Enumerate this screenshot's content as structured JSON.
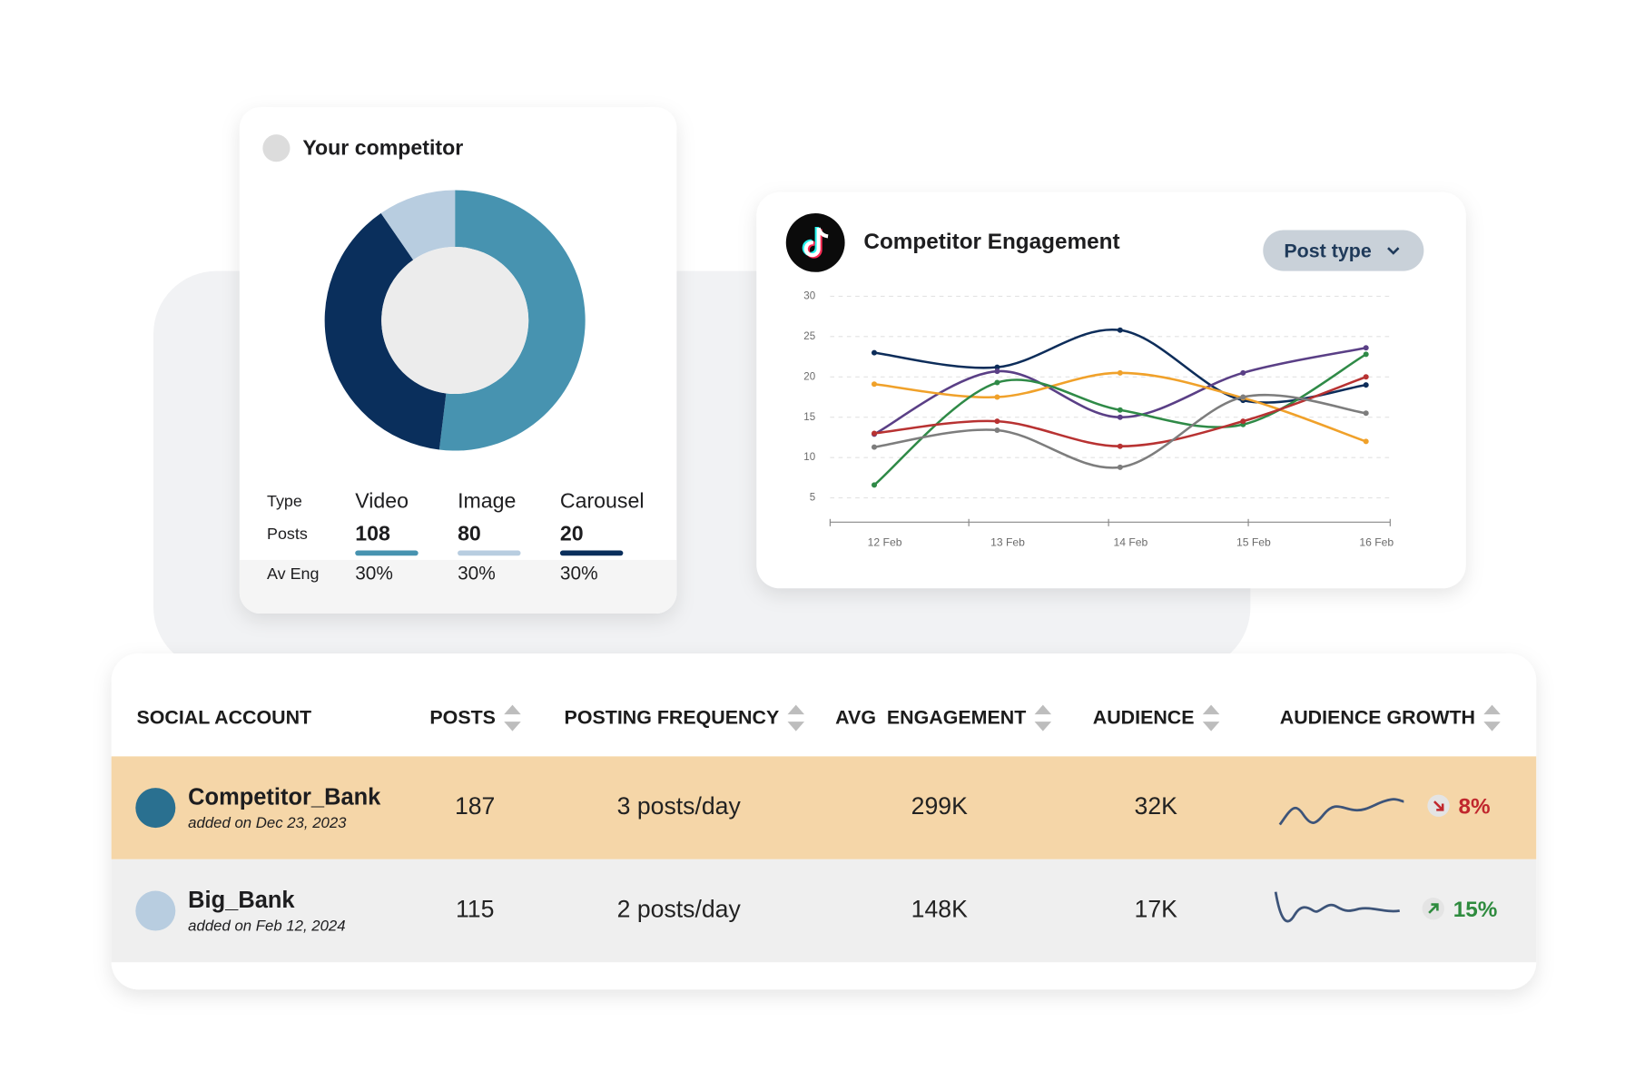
{
  "competitor_card": {
    "title": "Your competitor",
    "chart": {
      "type": "pie",
      "donut": true,
      "categories": [
        "Video",
        "Image",
        "Carousel"
      ],
      "values": [
        108,
        80,
        20
      ],
      "colors": [
        "#4793b0",
        "#0a2f5c",
        "#b8cde0"
      ]
    },
    "row_labels": [
      "Type",
      "Posts",
      "Av Eng"
    ],
    "bar_colors": [
      "#4793b0",
      "#b8cde0",
      "#0a2f5c"
    ],
    "av_eng": [
      "30%",
      "30%",
      "30%"
    ]
  },
  "engagement_card": {
    "title": "Competitor Engagement",
    "button": "Post type",
    "chart": {
      "type": "line",
      "categories": [
        "12 Feb",
        "13 Feb",
        "14 Feb",
        "15 Feb",
        "16 Feb"
      ],
      "series": [
        {
          "color": "#0d2d5a",
          "values": [
            23,
            21.2,
            25.8,
            17.1,
            19
          ]
        },
        {
          "color": "#5a3f86",
          "values": [
            12.9,
            20.7,
            15,
            20.5,
            23.6
          ]
        },
        {
          "color": "#f0a12a",
          "values": [
            19.1,
            17.5,
            20.5,
            17.4,
            12
          ]
        },
        {
          "color": "#2f8a47",
          "values": [
            6.6,
            19.3,
            15.9,
            14.1,
            22.8
          ]
        },
        {
          "color": "#b83232",
          "values": [
            13,
            14.5,
            11.4,
            14.5,
            20
          ]
        },
        {
          "color": "#7d7d7d",
          "values": [
            11.3,
            13.4,
            8.8,
            17.5,
            15.5
          ]
        }
      ],
      "ylim": [
        2,
        30
      ],
      "yticks": [
        5,
        10,
        15,
        20,
        25,
        30
      ],
      "grid": true
    }
  },
  "table": {
    "headers": [
      "SOCIAL ACCOUNT",
      "POSTS",
      "POSTING FREQUENCY",
      "AVG  ENGAGEMENT",
      "AUDIENCE",
      "AUDIENCE GROWTH"
    ],
    "rows": [
      {
        "account": "Competitor_Bank",
        "added": "added on Dec 23, 2023",
        "posts": 187,
        "frequency": "3 posts/day",
        "engagement": "299K",
        "audience": "32K",
        "growth": "8%",
        "trend": "down"
      },
      {
        "account": "Big_Bank",
        "added": "added on Feb 12, 2024",
        "posts": 115,
        "frequency": "2 posts/day",
        "engagement": "148K",
        "audience": "17K",
        "growth": "15%",
        "trend": "up"
      }
    ]
  }
}
